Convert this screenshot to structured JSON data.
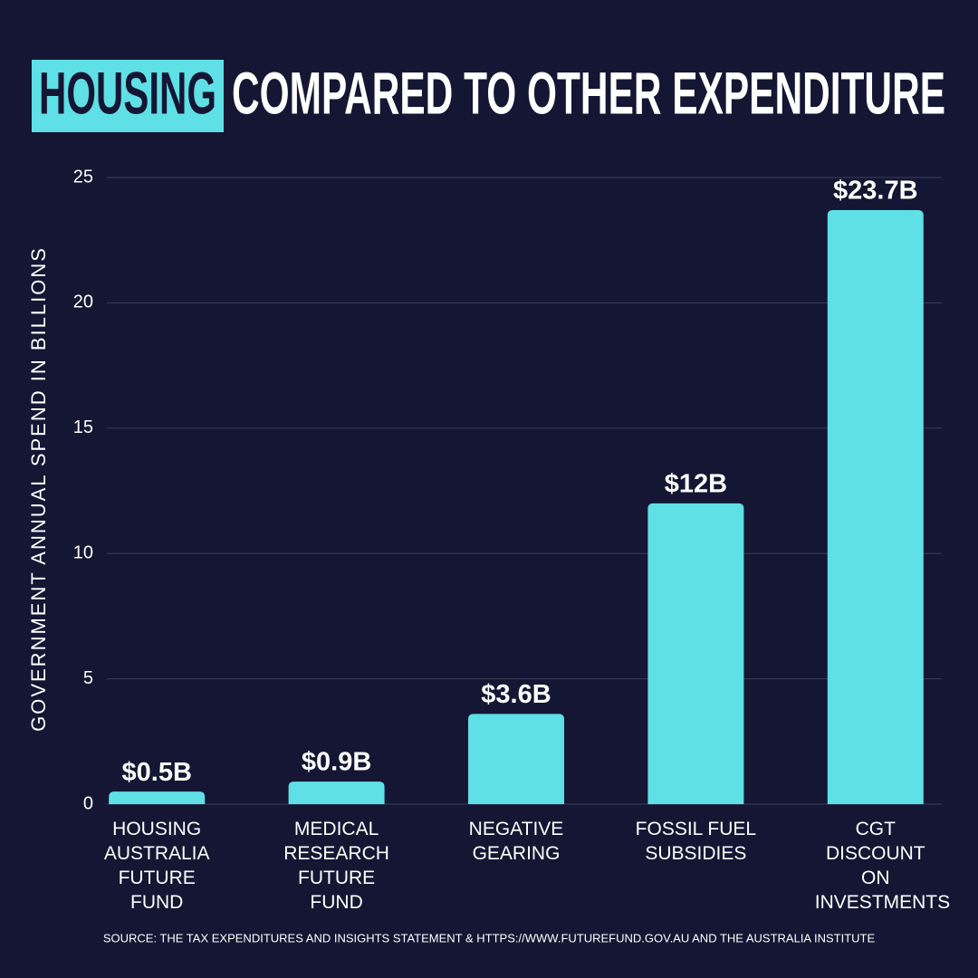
{
  "chart_data": {
    "type": "bar",
    "title_highlight": "HOUSING",
    "title": "COMPARED TO OTHER EXPENDITURE",
    "y_label": "GOVERNMENT ANNUAL SPEND IN BILLIONS",
    "categories": [
      "HOUSING AUSTRALIA FUTURE FUND",
      "MEDICAL RESEARCH FUTURE FUND",
      "NEGATIVE GEARING",
      "FOSSIL FUEL SUBSIDIES",
      "CGT DISCOUNT ON INVESTMENTS"
    ],
    "values": [
      0.5,
      0.9,
      3.6,
      12,
      23.7
    ],
    "value_labels": [
      "$0.5B",
      "$0.9B",
      "$3.6B",
      "$12B",
      "$23.7B"
    ],
    "color": "#5ee0e6",
    "ylim": [
      0,
      25
    ],
    "yticks": [
      0,
      5,
      10,
      15,
      20,
      25
    ],
    "grid": true,
    "source": "SOURCE: THE TAX EXPENDITURES AND INSIGHTS STATEMENT & HTTPS://WWW.FUTUREFUND.GOV.AU AND THE AUSTRALIA INSTITUTE"
  }
}
